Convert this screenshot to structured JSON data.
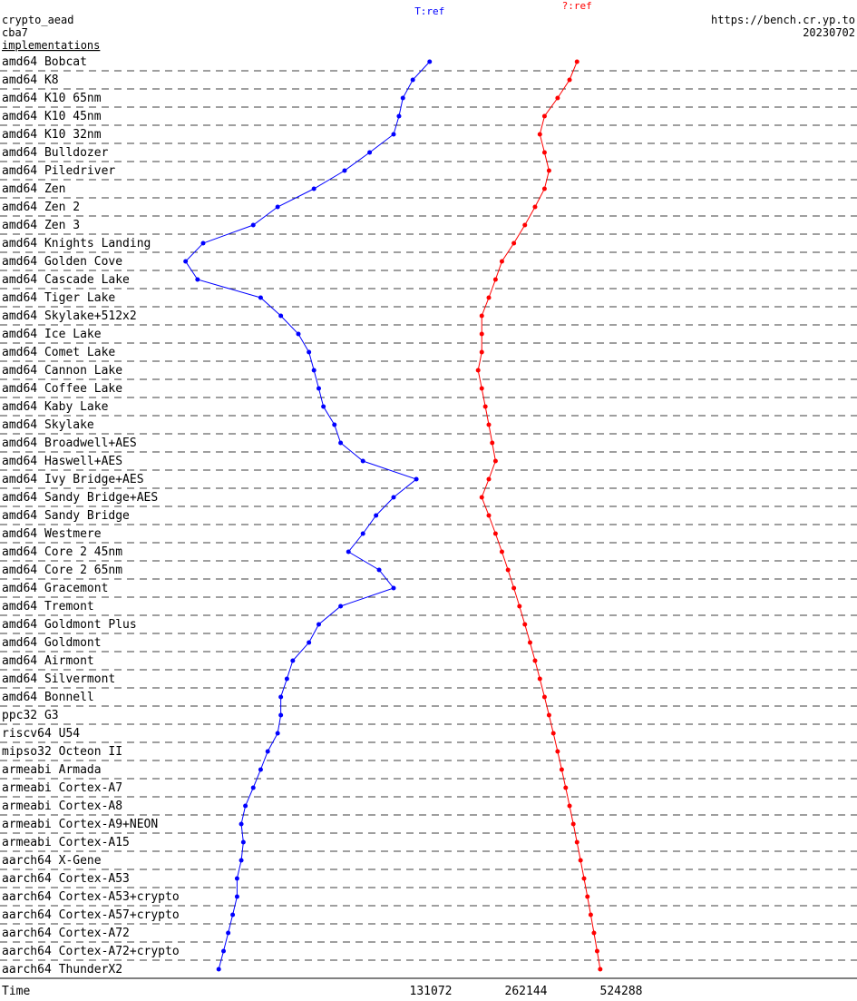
{
  "header": {
    "line1": "crypto_aead",
    "line2": "cba7",
    "line3": "implementations",
    "url": "https://bench.cr.yp.to",
    "date": "20230702"
  },
  "chart_data": {
    "type": "line",
    "orientation": "horizontal-values-vertical-categories",
    "x_scale": "log2",
    "xlim": [
      16384,
      1048576
    ],
    "xlabel": "Time",
    "x_ticks": [
      131072,
      262144,
      524288
    ],
    "x_tick_labels": [
      "131072",
      "262144",
      "524288"
    ],
    "grid": "dashed horizontal separators between categories",
    "series": [
      {
        "name": "T:ref",
        "color": "#0000ff"
      },
      {
        "name": "?:ref",
        "color": "#ff0000"
      }
    ],
    "categories": [
      "amd64 Bobcat",
      "amd64 K8",
      "amd64 K10 65nm",
      "amd64 K10 45nm",
      "amd64 K10 32nm",
      "amd64 Bulldozer",
      "amd64 Piledriver",
      "amd64 Zen",
      "amd64 Zen 2",
      "amd64 Zen 3",
      "amd64 Knights Landing",
      "amd64 Golden Cove",
      "amd64 Cascade Lake",
      "amd64 Tiger Lake",
      "amd64 Skylake+512x2",
      "amd64 Ice Lake",
      "amd64 Comet Lake",
      "amd64 Cannon Lake",
      "amd64 Coffee Lake",
      "amd64 Kaby Lake",
      "amd64 Skylake",
      "amd64 Broadwell+AES",
      "amd64 Haswell+AES",
      "amd64 Ivy Bridge+AES",
      "amd64 Sandy Bridge+AES",
      "amd64 Sandy Bridge",
      "amd64 Westmere",
      "amd64 Core 2 45nm",
      "amd64 Core 2 65nm",
      "amd64 Gracemont",
      "amd64 Tremont",
      "amd64 Goldmont Plus",
      "amd64 Goldmont",
      "amd64 Airmont",
      "amd64 Silvermont",
      "amd64 Bonnell",
      "ppc32 G3",
      "riscv64 U54",
      "mipso32 Octeon II",
      "armeabi Armada",
      "armeabi Cortex-A7",
      "armeabi Cortex-A8",
      "armeabi Cortex-A9+NEON",
      "armeabi Cortex-A15",
      "aarch64 X-Gene",
      "aarch64 Cortex-A53",
      "aarch64 Cortex-A53+crypto",
      "aarch64 Cortex-A57+crypto",
      "aarch64 Cortex-A72",
      "aarch64 Cortex-A72+crypto",
      "aarch64 ThunderX2"
    ],
    "points": {
      "blue": [
        [
          0,
          130000
        ],
        [
          1,
          115000
        ],
        [
          2,
          107000
        ],
        [
          3,
          104000
        ],
        [
          4,
          100000
        ],
        [
          5,
          84000
        ],
        [
          6,
          70000
        ],
        [
          7,
          56000
        ],
        [
          8,
          43000
        ],
        [
          9,
          36000
        ],
        [
          10,
          25000
        ],
        [
          11,
          22000
        ],
        [
          12,
          24000
        ],
        [
          13,
          38000
        ],
        [
          14,
          44000
        ],
        [
          15,
          50000
        ],
        [
          16,
          54000
        ],
        [
          17,
          56000
        ],
        [
          18,
          58000
        ],
        [
          19,
          60000
        ],
        [
          20,
          65000
        ],
        [
          21,
          68000
        ],
        [
          22,
          80000
        ],
        [
          23,
          118000
        ],
        [
          24,
          100000
        ],
        [
          25,
          88000
        ],
        [
          26,
          80000
        ],
        [
          27,
          72000
        ],
        [
          28,
          90000
        ],
        [
          29,
          100000
        ],
        [
          30,
          68000
        ],
        [
          31,
          58000
        ],
        [
          32,
          54000
        ],
        [
          33,
          48000
        ],
        [
          34,
          46000
        ],
        [
          35,
          44000
        ],
        [
          36,
          44000
        ],
        [
          37,
          43000
        ],
        [
          38,
          40000
        ],
        [
          39,
          38000
        ],
        [
          40,
          36000
        ],
        [
          41,
          34000
        ],
        [
          42,
          33000
        ],
        [
          43,
          33500
        ],
        [
          44,
          33000
        ],
        [
          45,
          32000
        ],
        [
          46,
          32000
        ],
        [
          47,
          31000
        ],
        [
          48,
          30000
        ],
        [
          49,
          29000
        ],
        [
          50,
          28000
        ]
      ],
      "red": [
        [
          0,
          380000
        ],
        [
          1,
          360000
        ],
        [
          2,
          330000
        ],
        [
          3,
          300000
        ],
        [
          4,
          290000
        ],
        [
          5,
          300000
        ],
        [
          6,
          310000
        ],
        [
          7,
          300000
        ],
        [
          8,
          280000
        ],
        [
          9,
          260000
        ],
        [
          10,
          240000
        ],
        [
          11,
          220000
        ],
        [
          12,
          210000
        ],
        [
          13,
          200000
        ],
        [
          14,
          190000
        ],
        [
          15,
          190000
        ],
        [
          16,
          190000
        ],
        [
          17,
          185000
        ],
        [
          18,
          190000
        ],
        [
          19,
          195000
        ],
        [
          20,
          200000
        ],
        [
          21,
          205000
        ],
        [
          22,
          210000
        ],
        [
          23,
          200000
        ],
        [
          24,
          190000
        ],
        [
          25,
          200000
        ],
        [
          26,
          210000
        ],
        [
          27,
          220000
        ],
        [
          28,
          230000
        ],
        [
          29,
          240000
        ],
        [
          30,
          250000
        ],
        [
          31,
          260000
        ],
        [
          32,
          270000
        ],
        [
          33,
          280000
        ],
        [
          34,
          290000
        ],
        [
          35,
          300000
        ],
        [
          36,
          310000
        ],
        [
          37,
          320000
        ],
        [
          38,
          330000
        ],
        [
          39,
          340000
        ],
        [
          40,
          350000
        ],
        [
          41,
          360000
        ],
        [
          42,
          370000
        ],
        [
          43,
          380000
        ],
        [
          44,
          390000
        ],
        [
          45,
          400000
        ],
        [
          46,
          410000
        ],
        [
          47,
          420000
        ],
        [
          48,
          430000
        ],
        [
          49,
          440000
        ],
        [
          50,
          450000
        ]
      ]
    },
    "y_ticks": [
      131072,
      262144,
      524288
    ],
    "y_tick_labels": [
      "131072",
      "262144",
      "524288"
    ],
    "x_tick_labels_bottom": [
      "Time",
      "131072",
      "262144",
      "524288"
    ]
  }
}
